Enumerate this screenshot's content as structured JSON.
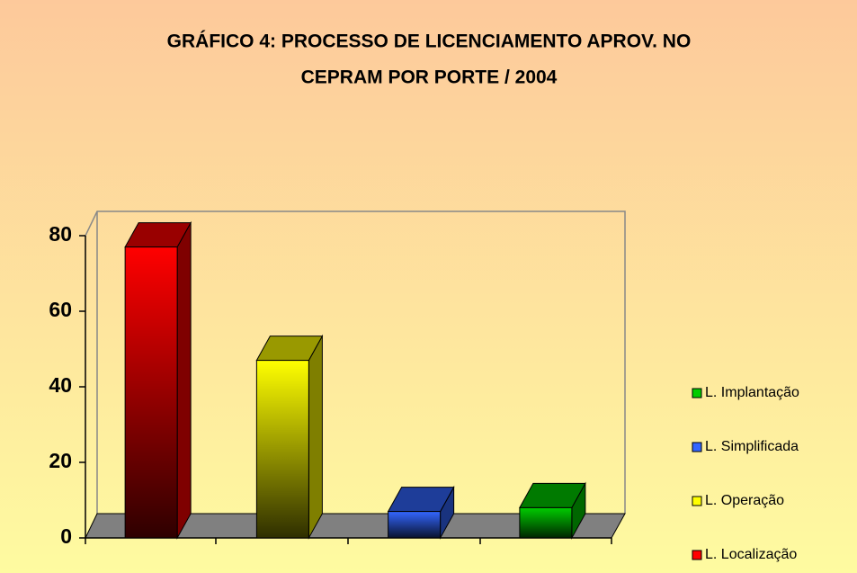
{
  "chart_data": {
    "type": "bar",
    "title": "GRÁFICO 4: PROCESSO DE LICENCIAMENTO APROV. NO",
    "subtitle": "CEPRAM POR PORTE / 2004",
    "series": [
      {
        "name": "L. Localização",
        "color": "#ff0000",
        "values": [
          77
        ]
      },
      {
        "name": "L. Operação",
        "color": "#ffff00",
        "values": [
          47
        ]
      },
      {
        "name": "L. Simplificada",
        "color": "#3366ff",
        "values": [
          7
        ]
      },
      {
        "name": "L. Implantação",
        "color": "#00cc00",
        "values": [
          8
        ]
      }
    ],
    "ylim": [
      0,
      80
    ],
    "yticks": [
      0,
      20,
      40,
      60,
      80
    ],
    "legend": "right"
  }
}
